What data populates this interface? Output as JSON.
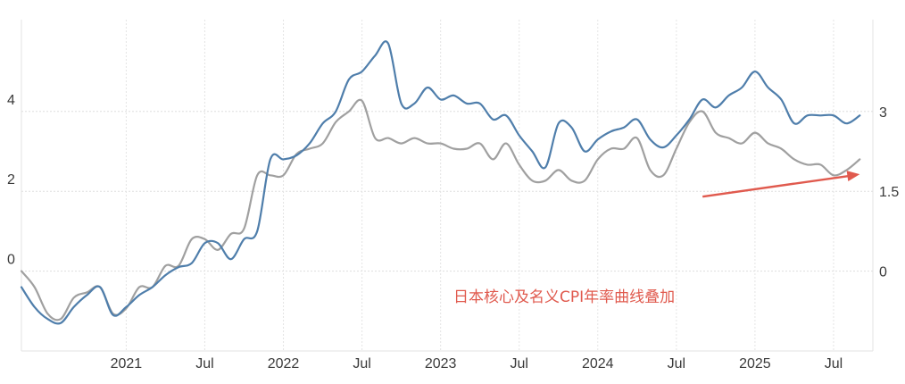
{
  "chart_data": {
    "type": "line",
    "title": "",
    "xlabel": "",
    "ylabel": "",
    "annotation": "日本核心及名义CPI年率曲线叠加",
    "x_ticks": [
      "2021",
      "Jul",
      "2022",
      "Jul",
      "2023",
      "Jul",
      "2024",
      "Jul",
      "2025",
      "Jul"
    ],
    "y_left": {
      "ticks": [
        "0",
        "2",
        "4"
      ],
      "values": [
        0,
        2,
        4
      ],
      "ylim": [
        -2,
        6.3
      ]
    },
    "y_right": {
      "ticks": [
        "0",
        "1.5",
        "3"
      ],
      "values": [
        0,
        1.5,
        3
      ],
      "ylim": [
        -1.5,
        4.725
      ]
    },
    "x_range": [
      "2020-05",
      "2025-10"
    ],
    "grid": true,
    "arrow_color": "#e05a4e",
    "series": [
      {
        "axis": "left",
        "color": "#4f7eab",
        "x": [
          "2020-05",
          "2020-06",
          "2020-07",
          "2020-08",
          "2020-09",
          "2020-10",
          "2020-11",
          "2020-12",
          "2021-01",
          "2021-02",
          "2021-03",
          "2021-04",
          "2021-05",
          "2021-06",
          "2021-07",
          "2021-08",
          "2021-09",
          "2021-10",
          "2021-11",
          "2021-12",
          "2022-01",
          "2022-02",
          "2022-03",
          "2022-04",
          "2022-05",
          "2022-06",
          "2022-07",
          "2022-08",
          "2022-09",
          "2022-10",
          "2022-11",
          "2022-12",
          "2023-01",
          "2023-02",
          "2023-03",
          "2023-04",
          "2023-05",
          "2023-06",
          "2023-07",
          "2023-08",
          "2023-09",
          "2023-10",
          "2023-11",
          "2023-12",
          "2024-01",
          "2024-02",
          "2024-03",
          "2024-04",
          "2024-05",
          "2024-06",
          "2024-07",
          "2024-08",
          "2024-09",
          "2024-10",
          "2024-11",
          "2024-12",
          "2025-01",
          "2025-02",
          "2025-03",
          "2025-04",
          "2025-05",
          "2025-06",
          "2025-07",
          "2025-08",
          "2025-09"
        ],
        "y": [
          -0.4,
          -0.9,
          -1.2,
          -1.3,
          -0.9,
          -0.6,
          -0.4,
          -1.1,
          -0.9,
          -0.6,
          -0.4,
          -0.1,
          0.1,
          0.2,
          0.7,
          0.7,
          0.3,
          0.8,
          1.0,
          2.8,
          2.8,
          2.9,
          3.2,
          3.7,
          4.0,
          4.8,
          5.0,
          5.4,
          5.7,
          4.2,
          4.2,
          4.6,
          4.3,
          4.4,
          4.2,
          4.2,
          3.8,
          3.9,
          3.4,
          3.0,
          2.6,
          3.7,
          3.6,
          3.0,
          3.3,
          3.5,
          3.6,
          3.8,
          3.3,
          3.1,
          3.4,
          3.8,
          4.3,
          4.1,
          4.4,
          4.6,
          5.0,
          4.6,
          4.3,
          3.7,
          3.9,
          3.9,
          3.9,
          3.7,
          3.9
        ]
      },
      {
        "axis": "right",
        "color": "#a0a0a0",
        "x": [
          "2020-05",
          "2020-06",
          "2020-07",
          "2020-08",
          "2020-09",
          "2020-10",
          "2020-11",
          "2020-12",
          "2021-01",
          "2021-02",
          "2021-03",
          "2021-04",
          "2021-05",
          "2021-06",
          "2021-07",
          "2021-08",
          "2021-09",
          "2021-10",
          "2021-11",
          "2021-12",
          "2022-01",
          "2022-02",
          "2022-03",
          "2022-04",
          "2022-05",
          "2022-06",
          "2022-07",
          "2022-08",
          "2022-09",
          "2022-10",
          "2022-11",
          "2022-12",
          "2023-01",
          "2023-02",
          "2023-03",
          "2023-04",
          "2023-05",
          "2023-06",
          "2023-07",
          "2023-08",
          "2023-09",
          "2023-10",
          "2023-11",
          "2023-12",
          "2024-01",
          "2024-02",
          "2024-03",
          "2024-04",
          "2024-05",
          "2024-06",
          "2024-07",
          "2024-08",
          "2024-09",
          "2024-10",
          "2024-11",
          "2024-12",
          "2025-01",
          "2025-02",
          "2025-03",
          "2025-04",
          "2025-05",
          "2025-06",
          "2025-07",
          "2025-08",
          "2025-09"
        ],
        "y": [
          0.0,
          -0.3,
          -0.8,
          -0.9,
          -0.5,
          -0.4,
          -0.3,
          -0.8,
          -0.7,
          -0.3,
          -0.3,
          0.1,
          0.1,
          0.6,
          0.6,
          0.4,
          0.7,
          0.8,
          1.8,
          1.8,
          1.8,
          2.2,
          2.3,
          2.4,
          2.8,
          3.0,
          3.2,
          2.5,
          2.5,
          2.4,
          2.5,
          2.4,
          2.4,
          2.3,
          2.3,
          2.4,
          2.1,
          2.4,
          2.0,
          1.7,
          1.7,
          1.9,
          1.7,
          1.7,
          2.1,
          2.3,
          2.3,
          2.5,
          1.9,
          1.8,
          2.3,
          2.8,
          3.0,
          2.6,
          2.5,
          2.4,
          2.6,
          2.4,
          2.3,
          2.1,
          2.0,
          2.0,
          1.8,
          1.9,
          2.1
        ]
      }
    ],
    "trend_arrow": {
      "from": [
        "2024-09",
        1.4
      ],
      "to": [
        "2025-09",
        1.82
      ],
      "axis": "right"
    }
  }
}
